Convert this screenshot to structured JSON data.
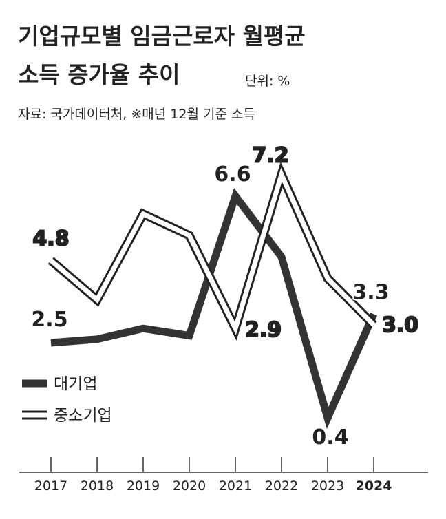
{
  "chart_data": {
    "type": "line",
    "title_lines": [
      "기업규모별 임금근로자 월평균",
      "소득 증가율 추이"
    ],
    "unit": "단위: %",
    "source": "자료: 국가데이터처, ※매년 12월 기준 소득",
    "categories": [
      "2017",
      "2018",
      "2019",
      "2020",
      "2021",
      "2022",
      "2023",
      "2024"
    ],
    "series": [
      {
        "name": "대기업",
        "color": "#333333",
        "values": [
          2.5,
          2.6,
          2.9,
          2.7,
          6.6,
          4.9,
          0.4,
          3.3
        ],
        "value_labels": [
          "2.5",
          null,
          null,
          null,
          "6.6",
          null,
          "0.4",
          "3.3"
        ]
      },
      {
        "name": "중소기업",
        "color": "#ffffff",
        "values": [
          4.8,
          3.7,
          6.1,
          5.5,
          2.9,
          7.2,
          4.3,
          3.0
        ],
        "value_labels": [
          "4.8",
          null,
          null,
          null,
          "2.9",
          "7.2",
          null,
          "3.0"
        ]
      }
    ],
    "ylim": [
      0,
      8.5
    ]
  }
}
